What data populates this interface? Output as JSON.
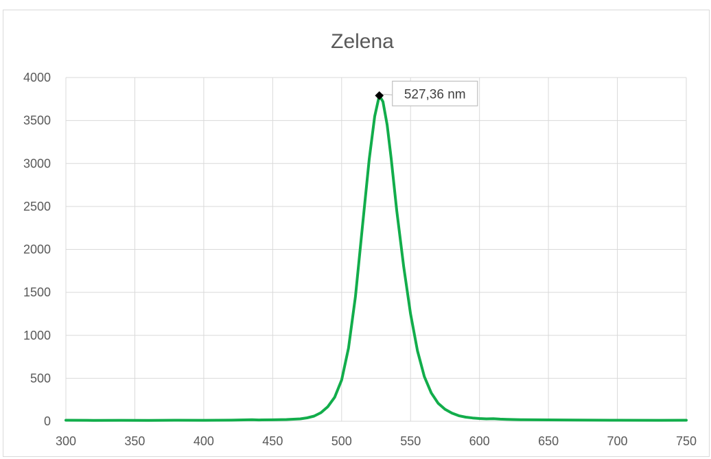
{
  "chart_data": {
    "type": "line",
    "title": "Zelena",
    "xlabel": "",
    "ylabel": "",
    "xlim": [
      300,
      750
    ],
    "ylim": [
      0,
      4000
    ],
    "x_ticks": [
      "300",
      "350",
      "400",
      "450",
      "500",
      "550",
      "600",
      "650",
      "700",
      "750"
    ],
    "y_ticks": [
      "0",
      "500",
      "1000",
      "1500",
      "2000",
      "2500",
      "3000",
      "3500",
      "4000"
    ],
    "grid": true,
    "legend": "none",
    "series": [
      {
        "color": "#12ad4b",
        "points": [
          [
            300,
            12
          ],
          [
            320,
            10
          ],
          [
            340,
            11
          ],
          [
            360,
            10
          ],
          [
            380,
            12
          ],
          [
            400,
            11
          ],
          [
            420,
            13
          ],
          [
            435,
            18
          ],
          [
            440,
            15
          ],
          [
            450,
            17
          ],
          [
            460,
            20
          ],
          [
            470,
            28
          ],
          [
            475,
            40
          ],
          [
            480,
            60
          ],
          [
            485,
            100
          ],
          [
            490,
            170
          ],
          [
            495,
            280
          ],
          [
            500,
            480
          ],
          [
            505,
            850
          ],
          [
            510,
            1450
          ],
          [
            515,
            2250
          ],
          [
            520,
            3050
          ],
          [
            524,
            3550
          ],
          [
            527.36,
            3790
          ],
          [
            530,
            3720
          ],
          [
            533,
            3450
          ],
          [
            536,
            3050
          ],
          [
            540,
            2450
          ],
          [
            545,
            1800
          ],
          [
            550,
            1250
          ],
          [
            555,
            820
          ],
          [
            560,
            520
          ],
          [
            565,
            330
          ],
          [
            570,
            210
          ],
          [
            575,
            140
          ],
          [
            580,
            95
          ],
          [
            585,
            65
          ],
          [
            590,
            48
          ],
          [
            595,
            38
          ],
          [
            600,
            32
          ],
          [
            605,
            28
          ],
          [
            610,
            30
          ],
          [
            615,
            25
          ],
          [
            620,
            22
          ],
          [
            630,
            18
          ],
          [
            650,
            16
          ],
          [
            670,
            14
          ],
          [
            700,
            12
          ],
          [
            730,
            11
          ],
          [
            750,
            12
          ]
        ]
      }
    ],
    "annotations": [
      {
        "label": "527,36 nm",
        "x": 527.36,
        "y": 3790
      }
    ]
  }
}
